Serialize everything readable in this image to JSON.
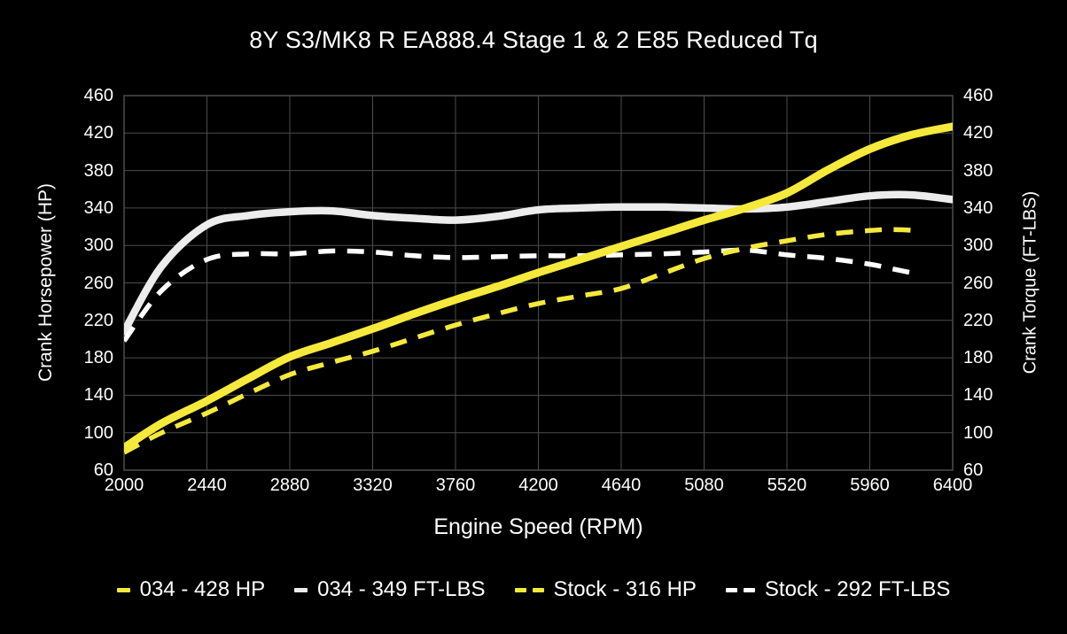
{
  "colors": {
    "background": "#000000",
    "text": "#ffffff",
    "grid": "#4d4d4d",
    "accent_yellow": "#f5e93c",
    "curve_white_solid": "#ececec",
    "curve_white_dashed": "#ffffff"
  },
  "chart_data": {
    "type": "line",
    "title": "8Y S3/MK8 R EA888.4 Stage 1 & 2 E85 Reduced Tq",
    "xlabel": "Engine Speed (RPM)",
    "ylabel_left": "Crank Horsepower (HP)",
    "ylabel_right": "Crank Torque (FT-LBS)",
    "xlim": [
      2000,
      6400
    ],
    "ylim": [
      60,
      460
    ],
    "x_ticks": [
      2000,
      2440,
      2880,
      3320,
      3760,
      4200,
      4640,
      5080,
      5520,
      5960,
      6400
    ],
    "y_ticks": [
      60,
      100,
      140,
      180,
      220,
      260,
      300,
      340,
      380,
      420,
      460
    ],
    "grid": true,
    "legend_position": "bottom",
    "series": [
      {
        "name": "034 - 428 HP",
        "color": "#f5e93c",
        "style": "solid",
        "width": 9,
        "points": [
          [
            2000,
            84
          ],
          [
            2200,
            110
          ],
          [
            2440,
            134
          ],
          [
            2660,
            158
          ],
          [
            2880,
            181
          ],
          [
            3100,
            196
          ],
          [
            3320,
            211
          ],
          [
            3540,
            227
          ],
          [
            3760,
            242
          ],
          [
            3980,
            256
          ],
          [
            4200,
            271
          ],
          [
            4420,
            285
          ],
          [
            4640,
            299
          ],
          [
            4860,
            313
          ],
          [
            5080,
            327
          ],
          [
            5300,
            340
          ],
          [
            5520,
            356
          ],
          [
            5740,
            381
          ],
          [
            5960,
            403
          ],
          [
            6180,
            418
          ],
          [
            6400,
            427
          ]
        ]
      },
      {
        "name": "034 - 349 FT-LBS",
        "color": "#ececec",
        "style": "solid",
        "width": 8.5,
        "points": [
          [
            2000,
            208
          ],
          [
            2200,
            278
          ],
          [
            2440,
            322
          ],
          [
            2660,
            332
          ],
          [
            2880,
            336
          ],
          [
            3100,
            337
          ],
          [
            3320,
            332
          ],
          [
            3540,
            329
          ],
          [
            3760,
            327
          ],
          [
            3980,
            331
          ],
          [
            4200,
            338
          ],
          [
            4420,
            340
          ],
          [
            4640,
            341
          ],
          [
            4860,
            341
          ],
          [
            5080,
            340
          ],
          [
            5300,
            339
          ],
          [
            5520,
            341
          ],
          [
            5740,
            347
          ],
          [
            5960,
            353
          ],
          [
            6180,
            354
          ],
          [
            6400,
            349
          ]
        ]
      },
      {
        "name": "Stock - 316 HP",
        "color": "#f5e93c",
        "style": "dashed",
        "width": 5.5,
        "points": [
          [
            2000,
            79
          ],
          [
            2200,
            100
          ],
          [
            2440,
            121
          ],
          [
            2660,
            142
          ],
          [
            2880,
            162
          ],
          [
            3100,
            175
          ],
          [
            3320,
            187
          ],
          [
            3540,
            201
          ],
          [
            3760,
            215
          ],
          [
            3980,
            227
          ],
          [
            4200,
            238
          ],
          [
            4420,
            246
          ],
          [
            4640,
            254
          ],
          [
            4860,
            270
          ],
          [
            5080,
            286
          ],
          [
            5300,
            297
          ],
          [
            5520,
            305
          ],
          [
            5740,
            312
          ],
          [
            5960,
            316
          ],
          [
            6080,
            317
          ],
          [
            6200,
            316
          ]
        ]
      },
      {
        "name": "Stock - 292 FT-LBS",
        "color": "#ffffff",
        "style": "dashed",
        "width": 5.5,
        "points": [
          [
            2000,
            198
          ],
          [
            2200,
            252
          ],
          [
            2440,
            285
          ],
          [
            2660,
            291
          ],
          [
            2880,
            291
          ],
          [
            3100,
            294
          ],
          [
            3320,
            293
          ],
          [
            3540,
            289
          ],
          [
            3760,
            287
          ],
          [
            3980,
            288
          ],
          [
            4200,
            289
          ],
          [
            4420,
            289
          ],
          [
            4640,
            290
          ],
          [
            4860,
            291
          ],
          [
            5080,
            293
          ],
          [
            5300,
            295
          ],
          [
            5520,
            290
          ],
          [
            5740,
            286
          ],
          [
            5960,
            280
          ],
          [
            6080,
            275
          ],
          [
            6200,
            270
          ]
        ]
      }
    ]
  }
}
